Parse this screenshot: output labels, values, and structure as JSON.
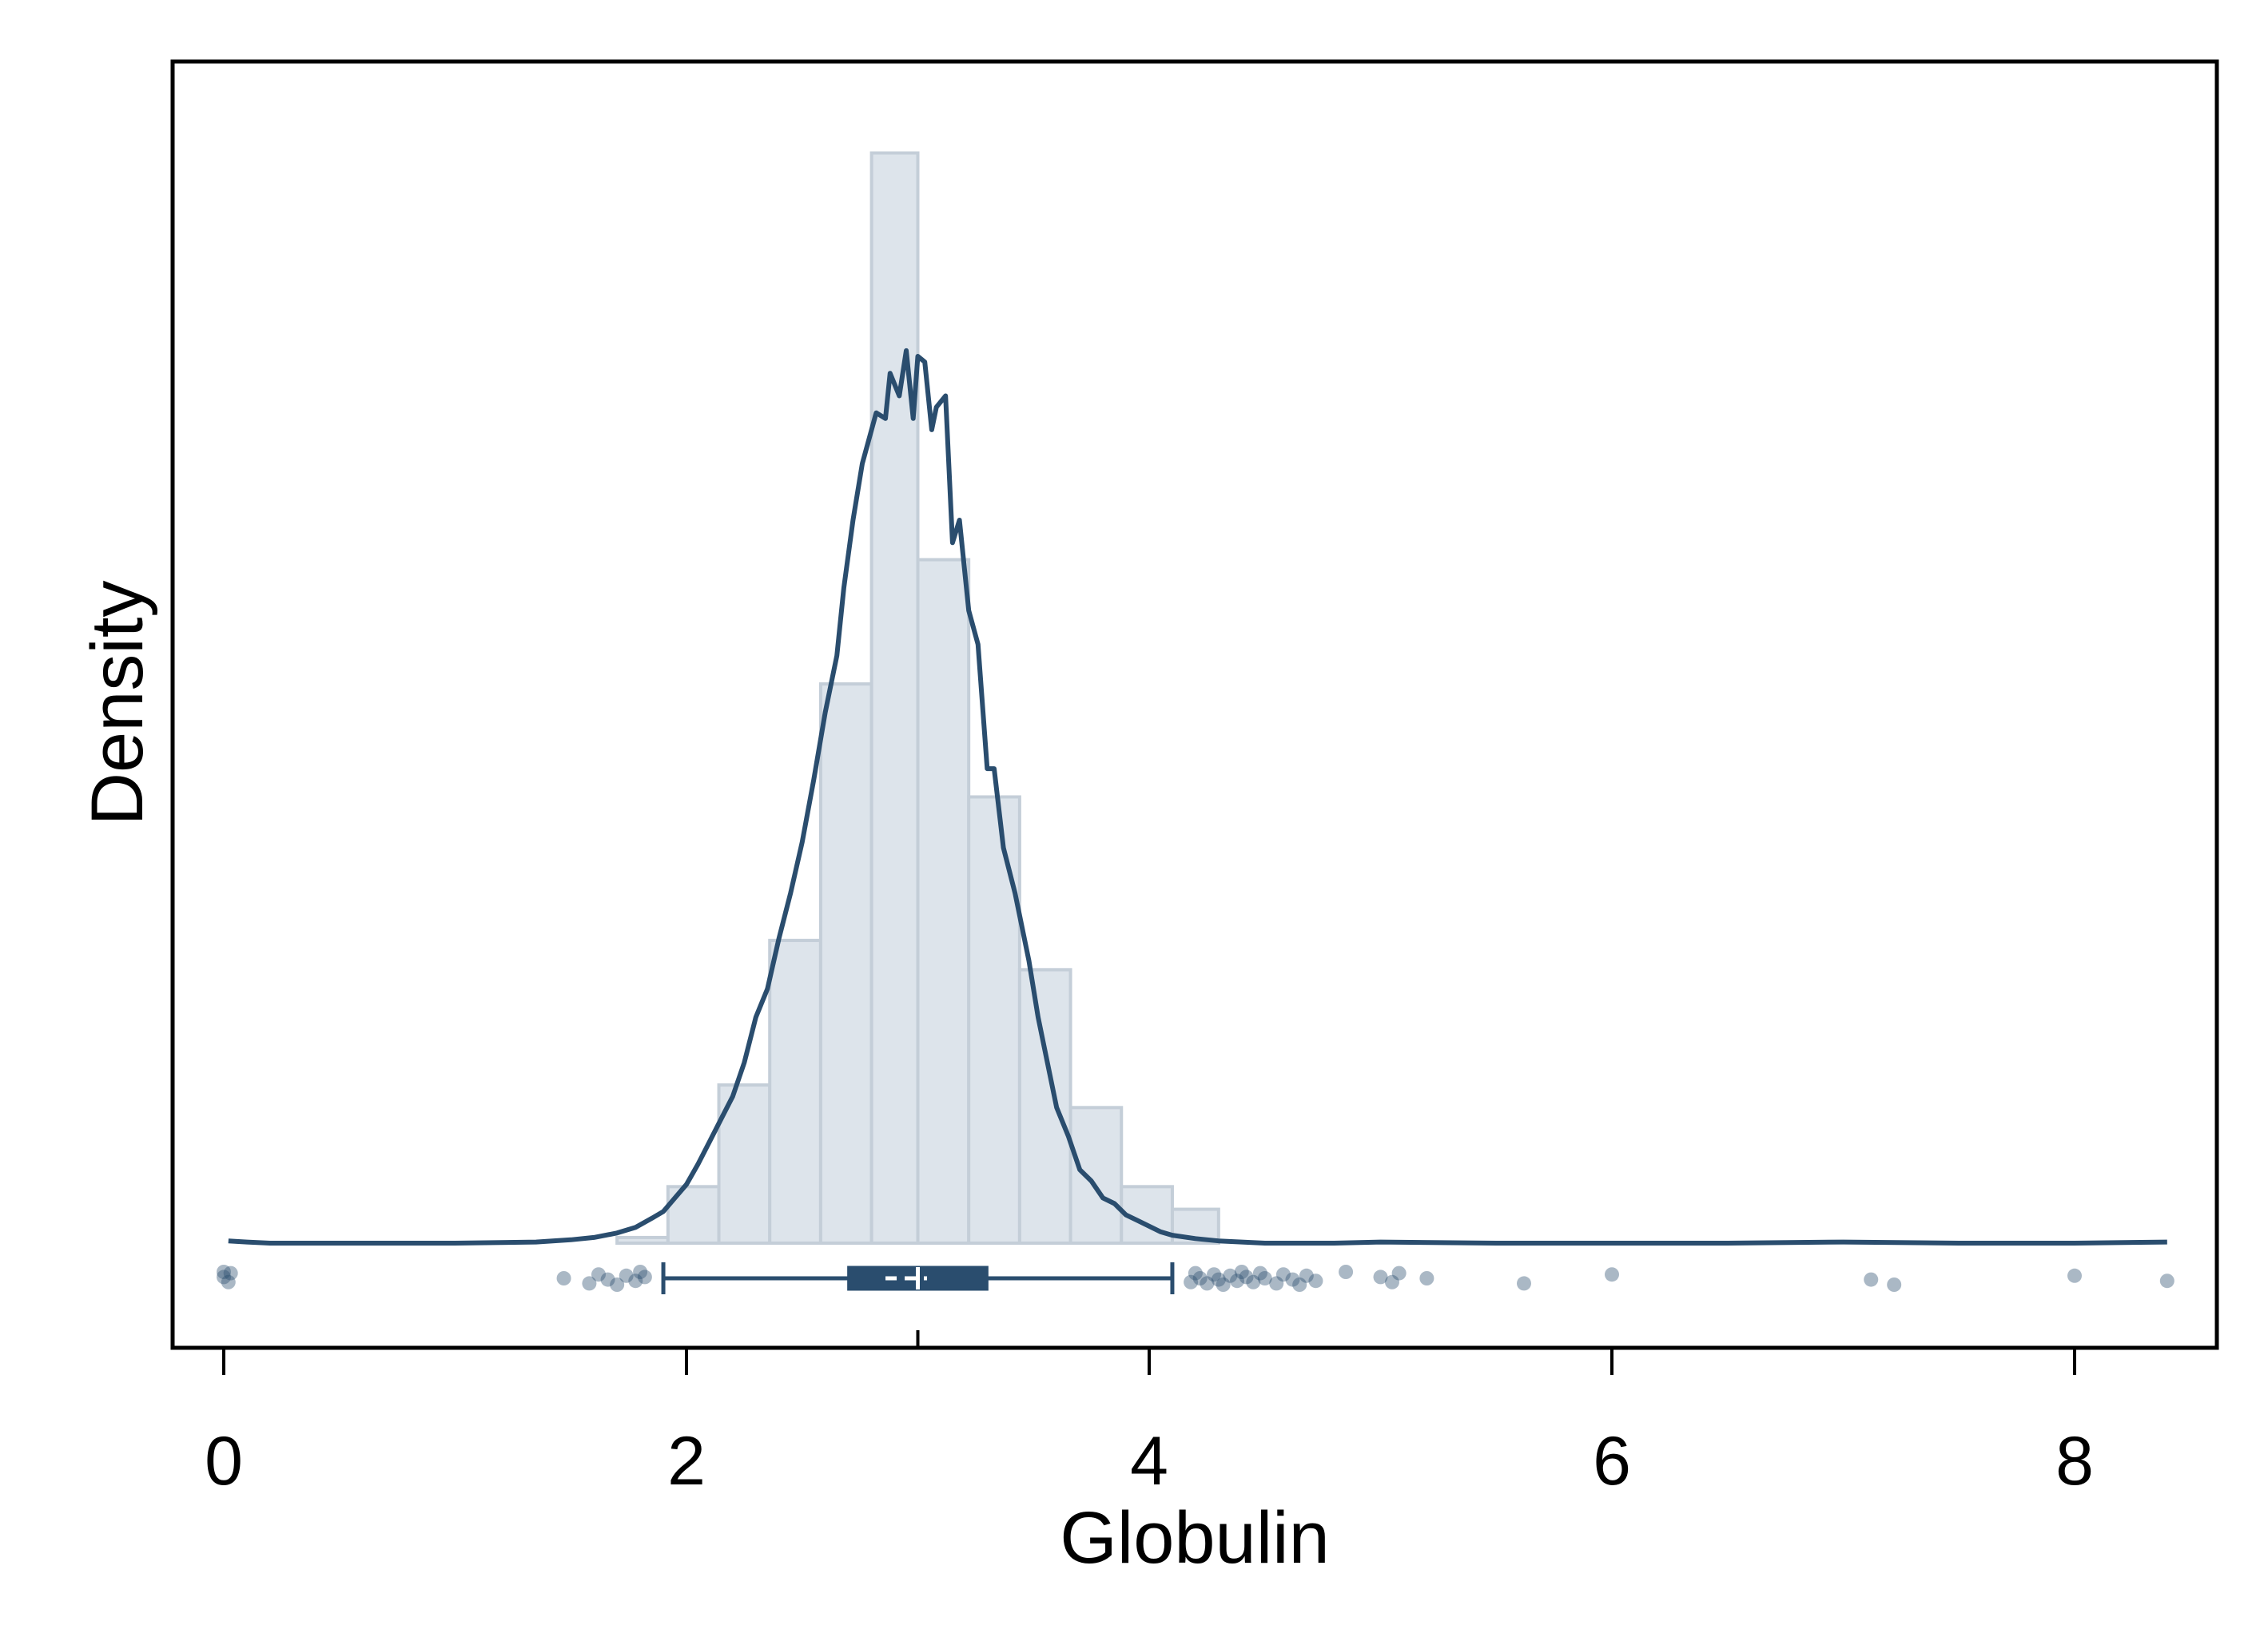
{
  "chart_data": {
    "type": "histogram",
    "xlabel": "Globulin",
    "ylabel": "Density",
    "xlim": [
      -0.25,
      8.6
    ],
    "ylim": [
      0,
      1.0
    ],
    "x_ticks": [
      0,
      2,
      4,
      6,
      8
    ],
    "y_ticks": [],
    "grid": false,
    "legend": "none",
    "colors": {
      "bar_fill": "#dde4eb",
      "bar_edge": "#c4ced8",
      "density_line": "#2a4d6e",
      "box": "#2a4d6e",
      "points": "#2a4d6e"
    },
    "histogram": {
      "bins": [
        {
          "x0": 1.7,
          "x1": 1.92,
          "density": 0.005
        },
        {
          "x0": 1.92,
          "x1": 2.14,
          "density": 0.05
        },
        {
          "x0": 2.14,
          "x1": 2.36,
          "density": 0.14
        },
        {
          "x0": 2.36,
          "x1": 2.58,
          "density": 0.268
        },
        {
          "x0": 2.58,
          "x1": 2.8,
          "density": 0.495
        },
        {
          "x0": 2.8,
          "x1": 3.0,
          "density": 0.965
        },
        {
          "x0": 3.0,
          "x1": 3.22,
          "density": 0.605
        },
        {
          "x0": 3.22,
          "x1": 3.44,
          "density": 0.395
        },
        {
          "x0": 3.44,
          "x1": 3.66,
          "density": 0.242
        },
        {
          "x0": 3.66,
          "x1": 3.88,
          "density": 0.12
        },
        {
          "x0": 3.88,
          "x1": 4.1,
          "density": 0.05
        },
        {
          "x0": 4.1,
          "x1": 4.3,
          "density": 0.03
        }
      ]
    },
    "density_curve": {
      "x": [
        0.02,
        0.1,
        0.2,
        0.5,
        1.0,
        1.35,
        1.5,
        1.6,
        1.7,
        1.78,
        1.85,
        1.9,
        1.95,
        2.0,
        2.05,
        2.1,
        2.15,
        2.2,
        2.25,
        2.3,
        2.35,
        2.4,
        2.45,
        2.5,
        2.55,
        2.6,
        2.65,
        2.68,
        2.72,
        2.76,
        2.8,
        2.82,
        2.86,
        2.88,
        2.92,
        2.95,
        2.98,
        3.0,
        3.03,
        3.06,
        3.08,
        3.12,
        3.15,
        3.18,
        3.22,
        3.26,
        3.3,
        3.33,
        3.37,
        3.42,
        3.48,
        3.52,
        3.56,
        3.6,
        3.65,
        3.7,
        3.75,
        3.8,
        3.85,
        3.9,
        3.95,
        4.0,
        4.05,
        4.1,
        4.2,
        4.3,
        4.4,
        4.5,
        4.6,
        4.7,
        4.8,
        5.0,
        5.5,
        6.0,
        6.5,
        7.0,
        7.5,
        8.0,
        8.4
      ],
      "density": [
        0.002,
        0.001,
        0.0,
        0.0,
        0.0,
        0.001,
        0.003,
        0.005,
        0.009,
        0.014,
        0.022,
        0.028,
        0.04,
        0.052,
        0.07,
        0.09,
        0.11,
        0.13,
        0.16,
        0.2,
        0.225,
        0.27,
        0.31,
        0.355,
        0.41,
        0.47,
        0.52,
        0.58,
        0.64,
        0.69,
        0.72,
        0.735,
        0.73,
        0.77,
        0.75,
        0.79,
        0.73,
        0.785,
        0.78,
        0.72,
        0.74,
        0.75,
        0.62,
        0.64,
        0.56,
        0.53,
        0.42,
        0.42,
        0.35,
        0.31,
        0.25,
        0.2,
        0.16,
        0.12,
        0.095,
        0.065,
        0.055,
        0.04,
        0.035,
        0.025,
        0.02,
        0.015,
        0.01,
        0.007,
        0.004,
        0.002,
        0.001,
        0.0,
        0.0,
        0.0,
        0.0,
        0.001,
        0.0,
        0.0,
        0.0,
        0.001,
        0.0,
        0.0,
        0.001
      ]
    },
    "boxplot": {
      "whisker_low": 1.9,
      "q1": 2.7,
      "median": 3.0,
      "mean": 2.95,
      "q3": 3.3,
      "whisker_high": 4.1,
      "outliers": [
        0.0,
        0.0,
        0.02,
        0.03,
        1.47,
        1.58,
        1.62,
        1.66,
        1.7,
        1.74,
        1.78,
        1.8,
        1.82,
        4.18,
        4.2,
        4.22,
        4.25,
        4.28,
        4.3,
        4.32,
        4.35,
        4.38,
        4.4,
        4.42,
        4.45,
        4.48,
        4.5,
        4.55,
        4.58,
        4.62,
        4.65,
        4.68,
        4.72,
        4.85,
        5.0,
        5.05,
        5.08,
        5.2,
        5.62,
        6.0,
        7.12,
        7.22,
        8.0,
        8.4
      ]
    }
  }
}
